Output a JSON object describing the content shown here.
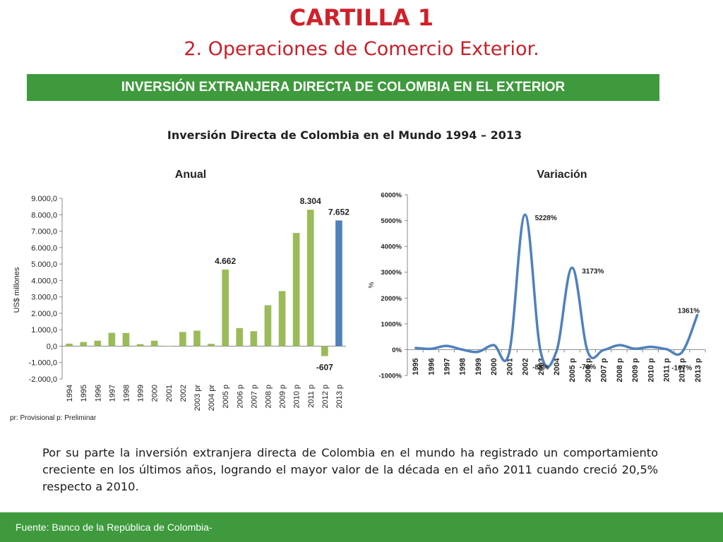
{
  "header": {
    "title": "CARTILLA 1",
    "subtitle": "2. Operaciones de Comercio Exterior."
  },
  "banner": {
    "text": "INVERSIÓN EXTRANJERA DIRECTA DE COLOMBIA EN EL EXTERIOR"
  },
  "figure_title": "Inversión Directa de Colombia en el Mundo  1994 – 2013",
  "note": "pr: Provisional p: Preliminar",
  "paragraph": "Por su parte la inversión extranjera directa de Colombia en el mundo ha registrado un comportamiento creciente en los últimos años, logrando el mayor valor de la década en el año 2011 cuando creció 20,5% respecto a 2010.",
  "footer": {
    "source": "Fuente: Banco de la República de Colombia-"
  },
  "colors": {
    "accent_red": "#d0202a",
    "banner_green": "#3e9a3c",
    "bar_green": "#9bbb59",
    "bar_blue": "#4f81bd",
    "line_blue": "#4f81bd"
  },
  "chart_data": [
    {
      "type": "bar",
      "title": "Anual",
      "ylabel": "US$ millones",
      "xlabel": "",
      "categories": [
        "1994",
        "1995",
        "1996",
        "1997",
        "1998",
        "1999",
        "2000",
        "2001",
        "2002",
        "2003 pr",
        "2004 pr",
        "2005 p",
        "2006 p",
        "2007 p",
        "2008 p",
        "2009 p",
        "2010 p",
        "2011 p",
        "2012 p",
        "2013 p"
      ],
      "values": [
        150,
        250,
        330,
        810,
        800,
        120,
        330,
        20,
        860,
        940,
        140,
        4662,
        1100,
        910,
        2490,
        3350,
        6890,
        8304,
        -607,
        7652
      ],
      "highlight_index": 19,
      "data_labels": [
        {
          "index": 11,
          "text": "4.662"
        },
        {
          "index": 17,
          "text": "8.304"
        },
        {
          "index": 18,
          "text": "-607"
        },
        {
          "index": 19,
          "text": "7.652"
        }
      ],
      "ylim": [
        -2000,
        9000
      ],
      "yticks": [
        -2000,
        -1000,
        0,
        1000,
        2000,
        3000,
        4000,
        5000,
        6000,
        7000,
        8000,
        9000
      ],
      "ytick_labels": [
        "-2.000,0",
        "-1.000,0",
        "0,0",
        "1.000,0",
        "2.000,0",
        "3.000,0",
        "4.000,0",
        "5.000,0",
        "6.000,0",
        "7.000,0",
        "8.000,0",
        "9.000,0"
      ],
      "grid": false,
      "legend": "none"
    },
    {
      "type": "line",
      "title": "Variación",
      "ylabel": "%",
      "xlabel": "",
      "categories": [
        "1995",
        "1996",
        "1997",
        "1998",
        "1999",
        "2000",
        "2001",
        "2002",
        "2003",
        "2004",
        "2005 p",
        "2006 p",
        "2007 p",
        "2008 p",
        "2009 p",
        "2010 p",
        "2011 p",
        "2012 p",
        "2013 p"
      ],
      "values": [
        67,
        32,
        144,
        1,
        -85,
        175,
        -94,
        5228,
        -85,
        -76,
        3173,
        -76,
        -17,
        174,
        35,
        107,
        21,
        -107,
        1361
      ],
      "data_labels": [
        {
          "index": 7,
          "text": "5228%"
        },
        {
          "index": 8,
          "text": "-85%"
        },
        {
          "index": 10,
          "text": "3173%"
        },
        {
          "index": 11,
          "text": "-76%"
        },
        {
          "index": 17,
          "text": "-107%"
        },
        {
          "index": 18,
          "text": "1361%"
        }
      ],
      "ylim": [
        -1000,
        6000
      ],
      "yticks": [
        -1000,
        0,
        1000,
        2000,
        3000,
        4000,
        5000,
        6000
      ],
      "ytick_labels": [
        "-1000%",
        "0%",
        "1000%",
        "2000%",
        "3000%",
        "4000%",
        "5000%",
        "6000%"
      ],
      "grid": false,
      "legend": "none"
    }
  ]
}
